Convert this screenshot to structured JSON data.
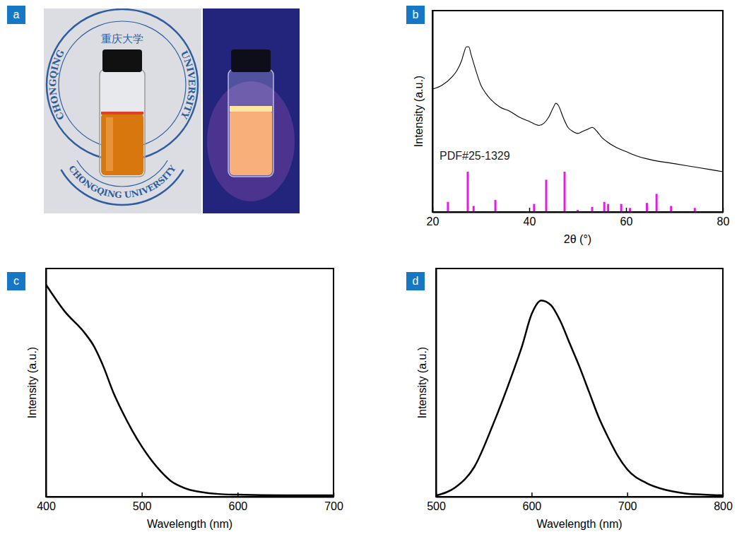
{
  "photo": {
    "panel_label": "a",
    "top_seal": {
      "title": "重庆大学",
      "left_arc": "CHONGQING",
      "right_arc": "UNIVERSITY"
    },
    "bottom_seal": "CHONGQING UNIVERSITY"
  },
  "chart_data": [
    {
      "panel_label": "b",
      "type": "line",
      "x_label": "2θ (°)",
      "y_label": "Intensity (a.u.)",
      "xlim": [
        20,
        80
      ],
      "ylim": [
        0,
        100
      ],
      "xticks": [
        20,
        40,
        60,
        80
      ],
      "tick_labels": "x",
      "series": [
        {
          "name": "PDF#25-1329",
          "type": "bar",
          "color": "#e21ee2",
          "x": [
            23.2,
            27.3,
            28.5,
            33.0,
            41.0,
            43.5,
            47.3,
            50.0,
            53.0,
            55.5,
            56.3,
            59.0,
            60.8,
            64.3,
            66.3,
            69.3,
            74.2
          ],
          "values": [
            5,
            20,
            3,
            6,
            4,
            16,
            20,
            1,
            2.5,
            5,
            4,
            4,
            2,
            4.5,
            9,
            3,
            2
          ]
        },
        {
          "type": "line",
          "color": "#000000",
          "x": [
            20,
            22,
            24,
            25,
            26,
            26.5,
            27,
            27.5,
            28,
            28.5,
            29,
            30,
            31,
            32,
            34,
            36,
            38,
            40,
            42,
            43,
            44,
            45,
            45.5,
            46,
            47,
            48,
            49,
            50,
            51,
            52,
            53,
            54,
            55,
            56,
            58,
            60,
            62,
            65,
            70,
            75,
            80
          ],
          "values": [
            61,
            63,
            67,
            70,
            75,
            79,
            82,
            82,
            78,
            74,
            70,
            63,
            59,
            56,
            52,
            50,
            47,
            45,
            43,
            44,
            47,
            52,
            54,
            53,
            47,
            42,
            40,
            39,
            40,
            41,
            42,
            40,
            37,
            35,
            32,
            30,
            28,
            26,
            24,
            22,
            20
          ]
        }
      ]
    },
    {
      "panel_label": "c",
      "type": "line",
      "x_label": "Wavelength (nm)",
      "y_label": "Intensity (a.u.)",
      "xlim": [
        400,
        700
      ],
      "ylim": [
        0,
        100
      ],
      "xticks": [
        400,
        500,
        600,
        700
      ],
      "tick_labels": "x",
      "series": [
        {
          "color": "#000000",
          "x": [
            400,
            420,
            440,
            450,
            460,
            470,
            480,
            490,
            500,
            510,
            520,
            530,
            540,
            550,
            560,
            580,
            600,
            650,
            700
          ],
          "values": [
            93,
            81,
            72,
            66,
            57,
            46,
            37,
            29,
            22,
            16,
            11,
            7,
            4.6,
            3,
            2.2,
            1.2,
            0.9,
            0.6,
            0.6
          ]
        }
      ]
    },
    {
      "panel_label": "d",
      "type": "line",
      "x_label": "Wavelength (nm)",
      "y_label": "Intensity (a.u.)",
      "xlim": [
        500,
        800
      ],
      "ylim": [
        0,
        100
      ],
      "xticks": [
        500,
        600,
        700,
        800
      ],
      "tick_labels": "x",
      "series": [
        {
          "color": "#000000",
          "x": [
            500,
            520,
            540,
            560,
            580,
            590,
            600,
            610,
            620,
            630,
            640,
            650,
            660,
            670,
            680,
            690,
            700,
            720,
            740,
            760,
            780,
            800
          ],
          "values": [
            0.5,
            4,
            13,
            32,
            54,
            66,
            80,
            86,
            84,
            77,
            67,
            57,
            46,
            35,
            26,
            18,
            12,
            6,
            3,
            1.5,
            0.9,
            0.6
          ]
        }
      ]
    }
  ]
}
